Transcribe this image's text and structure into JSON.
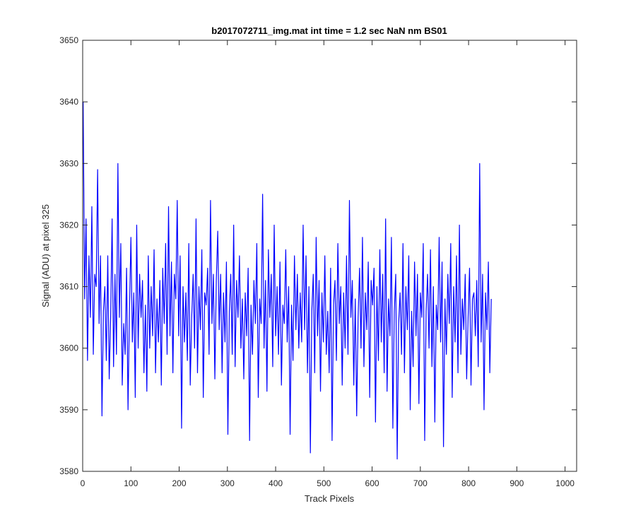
{
  "chart_data": {
    "type": "line",
    "title": "b2017072711_img.mat int time = 1.2 sec  NaN nm BS01",
    "xlabel": "Track Pixels",
    "ylabel": "Signal (ADU) at pixel 325",
    "xlim": [
      0,
      1024
    ],
    "ylim": [
      3580,
      3650
    ],
    "xticks": [
      0,
      100,
      200,
      300,
      400,
      500,
      600,
      700,
      800,
      900,
      1000
    ],
    "xtick_labels": [
      "0",
      "100",
      "200",
      "300",
      "400",
      "500",
      "600",
      "700",
      "800",
      "900",
      "1000"
    ],
    "yticks": [
      3580,
      3590,
      3600,
      3610,
      3620,
      3630,
      3640,
      3650
    ],
    "ytick_labels": [
      "3580",
      "3590",
      "3600",
      "3610",
      "3620",
      "3630",
      "3640",
      "3650"
    ],
    "grid": false,
    "line_color": "#0000ff",
    "series": [
      {
        "x_start": 1,
        "x_step": 3,
        "values": [
          3640,
          3608,
          3621,
          3598,
          3615,
          3605,
          3623,
          3599,
          3612,
          3610,
          3629,
          3604,
          3615,
          3589,
          3606,
          3610,
          3598,
          3615,
          3595,
          3605,
          3621,
          3597,
          3612,
          3599,
          3630,
          3605,
          3617,
          3594,
          3604,
          3599,
          3613,
          3590,
          3606,
          3618,
          3601,
          3609,
          3592,
          3620,
          3600,
          3612,
          3605,
          3611,
          3596,
          3607,
          3593,
          3615,
          3600,
          3610,
          3602,
          3616,
          3596,
          3608,
          3601,
          3611,
          3594,
          3613,
          3604,
          3617,
          3599,
          3623,
          3602,
          3614,
          3596,
          3612,
          3608,
          3624,
          3602,
          3615,
          3587,
          3610,
          3601,
          3609,
          3598,
          3617,
          3594,
          3605,
          3612,
          3600,
          3621,
          3596,
          3610,
          3603,
          3616,
          3592,
          3609,
          3607,
          3613,
          3599,
          3624,
          3604,
          3612,
          3595,
          3611,
          3619,
          3603,
          3612,
          3596,
          3609,
          3601,
          3614,
          3586,
          3606,
          3612,
          3599,
          3620,
          3597,
          3611,
          3605,
          3615,
          3600,
          3608,
          3595,
          3609,
          3602,
          3613,
          3585,
          3607,
          3599,
          3611,
          3604,
          3617,
          3592,
          3608,
          3604,
          3625,
          3600,
          3611,
          3593,
          3616,
          3605,
          3612,
          3597,
          3620,
          3602,
          3610,
          3599,
          3614,
          3594,
          3607,
          3604,
          3616,
          3601,
          3610,
          3586,
          3607,
          3598,
          3615,
          3603,
          3612,
          3600,
          3609,
          3601,
          3620,
          3603,
          3615,
          3596,
          3610,
          3583,
          3606,
          3612,
          3596,
          3618,
          3602,
          3611,
          3593,
          3609,
          3601,
          3615,
          3599,
          3606,
          3596,
          3613,
          3585,
          3607,
          3611,
          3598,
          3617,
          3604,
          3610,
          3594,
          3609,
          3600,
          3615,
          3599,
          3624,
          3605,
          3611,
          3594,
          3608,
          3589,
          3605,
          3613,
          3600,
          3618,
          3597,
          3609,
          3603,
          3614,
          3592,
          3611,
          3607,
          3613,
          3588,
          3610,
          3598,
          3616,
          3601,
          3612,
          3596,
          3621,
          3593,
          3608,
          3602,
          3618,
          3587,
          3606,
          3612,
          3582,
          3604,
          3609,
          3599,
          3617,
          3596,
          3610,
          3603,
          3615,
          3590,
          3606,
          3597,
          3614,
          3602,
          3612,
          3591,
          3609,
          3605,
          3617,
          3585,
          3606,
          3612,
          3600,
          3616,
          3597,
          3610,
          3588,
          3607,
          3603,
          3618,
          3601,
          3614,
          3584,
          3608,
          3599,
          3612,
          3604,
          3617,
          3592,
          3610,
          3601,
          3615,
          3596,
          3620,
          3599,
          3608,
          3603,
          3612,
          3595,
          3605,
          3613,
          3594,
          3608,
          3609,
          3602,
          3611,
          3597,
          3630,
          3601,
          3612,
          3590,
          3609,
          3603,
          3614,
          3596,
          3608
        ]
      }
    ]
  }
}
